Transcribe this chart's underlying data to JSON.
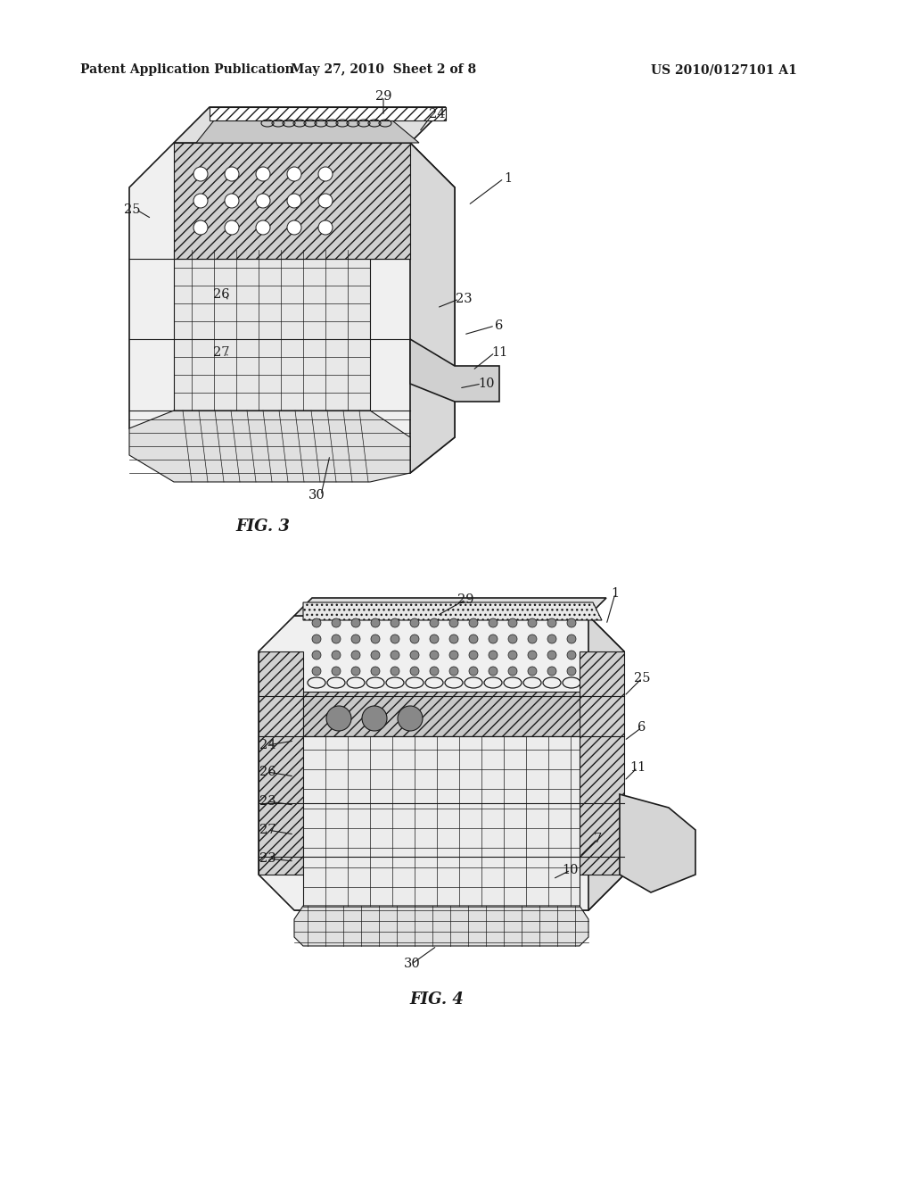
{
  "background_color": "#ffffff",
  "header_left": "Patent Application Publication",
  "header_center": "May 27, 2010  Sheet 2 of 8",
  "header_right": "US 2010/0127101 A1",
  "fig3_label": "FIG. 3",
  "fig4_label": "FIG. 4"
}
